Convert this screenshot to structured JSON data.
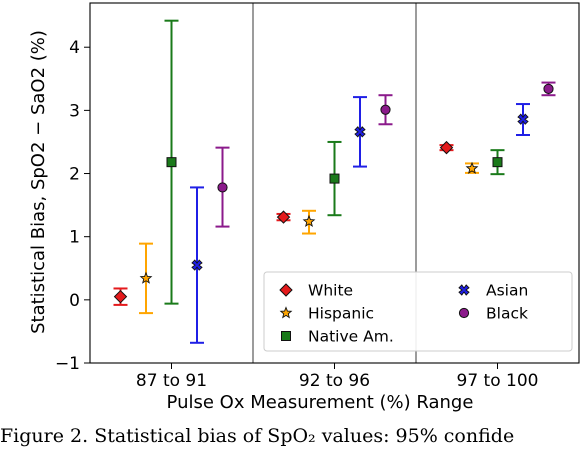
{
  "chart_data": {
    "type": "errorbar",
    "categories": [
      "87 to 91",
      "92 to 96",
      "97 to 100"
    ],
    "xlabel": "Pulse Ox Measurement (%) Range",
    "ylabel": "Statistical Bias, SpO2 − SaO2 (%)",
    "ylim": [
      -1,
      4.7
    ],
    "yticks": [
      -1,
      0,
      1,
      2,
      3,
      4
    ],
    "grid": false,
    "legend_position": "bottom-right",
    "series": [
      {
        "name": "White",
        "color": "#e41a1c",
        "marker": "diamond",
        "values": [
          0.05,
          1.31,
          2.41
        ],
        "lower": [
          -0.08,
          1.26,
          2.37
        ],
        "upper": [
          0.18,
          1.36,
          2.45
        ]
      },
      {
        "name": "Hispanic",
        "color": "#ffa500",
        "marker": "star",
        "values": [
          0.34,
          1.24,
          2.08
        ],
        "lower": [
          -0.21,
          1.05,
          2.01
        ],
        "upper": [
          0.89,
          1.41,
          2.16
        ]
      },
      {
        "name": "Native Am.",
        "color": "#1a7a1a",
        "marker": "square",
        "values": [
          2.18,
          1.92,
          2.18
        ],
        "lower": [
          -0.06,
          1.34,
          1.99
        ],
        "upper": [
          4.42,
          2.5,
          2.37
        ]
      },
      {
        "name": "Asian",
        "color": "#1f1fe6",
        "marker": "x",
        "values": [
          0.55,
          2.66,
          2.86
        ],
        "lower": [
          -0.68,
          2.11,
          2.61
        ],
        "upper": [
          1.78,
          3.21,
          3.1
        ]
      },
      {
        "name": "Black",
        "color": "#8b1a8b",
        "marker": "circle",
        "values": [
          1.78,
          3.01,
          3.34
        ],
        "lower": [
          1.16,
          2.78,
          3.24
        ],
        "upper": [
          2.41,
          3.24,
          3.44
        ]
      }
    ]
  },
  "caption": "Figure 2. Statistical bias of SpO₂ values: 95% confide"
}
